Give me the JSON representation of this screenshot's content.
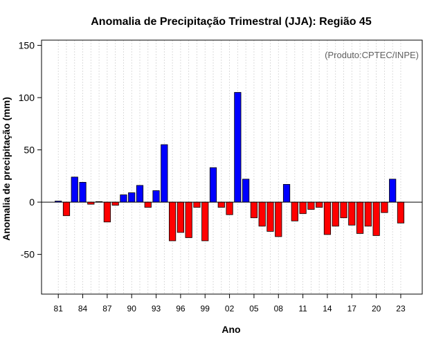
{
  "chart_data": {
    "type": "bar",
    "title": "Anomalia de Precipitação Trimestral (JJA): Região 45",
    "xlabel": "Ano",
    "ylabel": "Anomalia de precipitação (mm)",
    "credit": "(Produto:CPTEC/INPE)",
    "ylim": [
      -88,
      155
    ],
    "yticks": [
      -50,
      0,
      50,
      100,
      150
    ],
    "xtick_labels": [
      "81",
      "84",
      "87",
      "90",
      "93",
      "96",
      "99",
      "02",
      "05",
      "08",
      "11",
      "14",
      "17",
      "20",
      "23"
    ],
    "xtick_years": [
      1981,
      1984,
      1987,
      1990,
      1993,
      1996,
      1999,
      2002,
      2005,
      2008,
      2011,
      2014,
      2017,
      2020,
      2023
    ],
    "grid": true,
    "colors": {
      "positive": "#0000ff",
      "negative": "#ff0000"
    },
    "categories": [
      1981,
      1982,
      1983,
      1984,
      1985,
      1986,
      1987,
      1988,
      1989,
      1990,
      1991,
      1992,
      1993,
      1994,
      1995,
      1996,
      1997,
      1998,
      1999,
      2000,
      2001,
      2002,
      2003,
      2004,
      2005,
      2006,
      2007,
      2008,
      2009,
      2010,
      2011,
      2012,
      2013,
      2014,
      2015,
      2016,
      2017,
      2018,
      2019,
      2020,
      2021,
      2022,
      2023
    ],
    "values": [
      1,
      -13,
      24,
      19,
      -2,
      0.5,
      -19,
      -3,
      7,
      9,
      16,
      -5,
      11,
      55,
      -37,
      -29,
      -34,
      -5,
      -37,
      33,
      -5,
      -12,
      105,
      22,
      -15,
      -23,
      -28,
      -33,
      17,
      -18,
      -11,
      -7,
      -5,
      -31,
      -23,
      -15,
      -22,
      -30,
      -23,
      -32,
      -10,
      22,
      -20
    ]
  }
}
